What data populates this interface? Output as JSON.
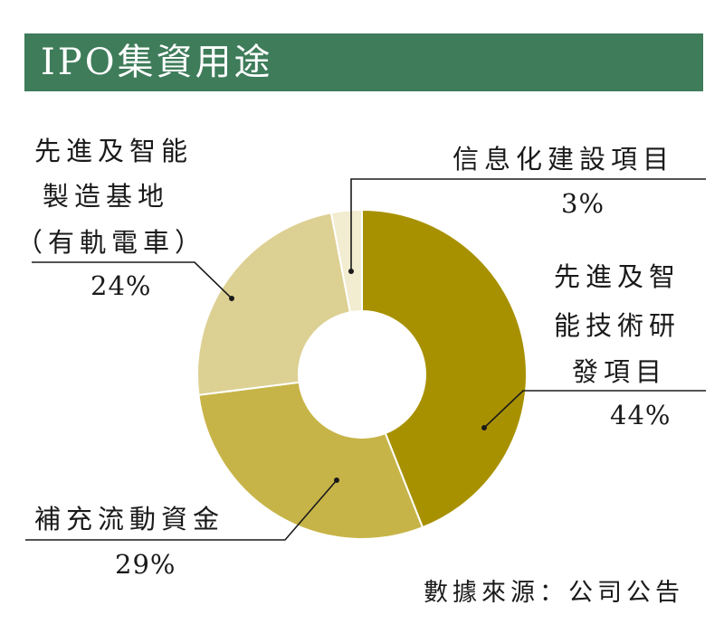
{
  "title": "IPO集資用途",
  "source": "數據來源：公司公告",
  "colors": {
    "title_bg": "#3e7c5a",
    "leader": "#1a1a1a"
  },
  "chart_data": {
    "type": "pie",
    "donut": true,
    "title": "IPO集資用途",
    "slices": [
      {
        "label_lines": [
          "先進及智",
          "能技術研",
          "發項目"
        ],
        "value": 44,
        "pct_label": "44%",
        "color": "#a89100"
      },
      {
        "label_lines": [
          "補充流動資金"
        ],
        "value": 29,
        "pct_label": "29%",
        "color": "#c7b448"
      },
      {
        "label_lines": [
          "先進及智能",
          "製造基地",
          "（有軌電車）"
        ],
        "value": 24,
        "pct_label": "24%",
        "color": "#ddd093"
      },
      {
        "label_lines": [
          "信息化建設項目"
        ],
        "value": 3,
        "pct_label": "3%",
        "color": "#f2ecd0"
      }
    ]
  }
}
